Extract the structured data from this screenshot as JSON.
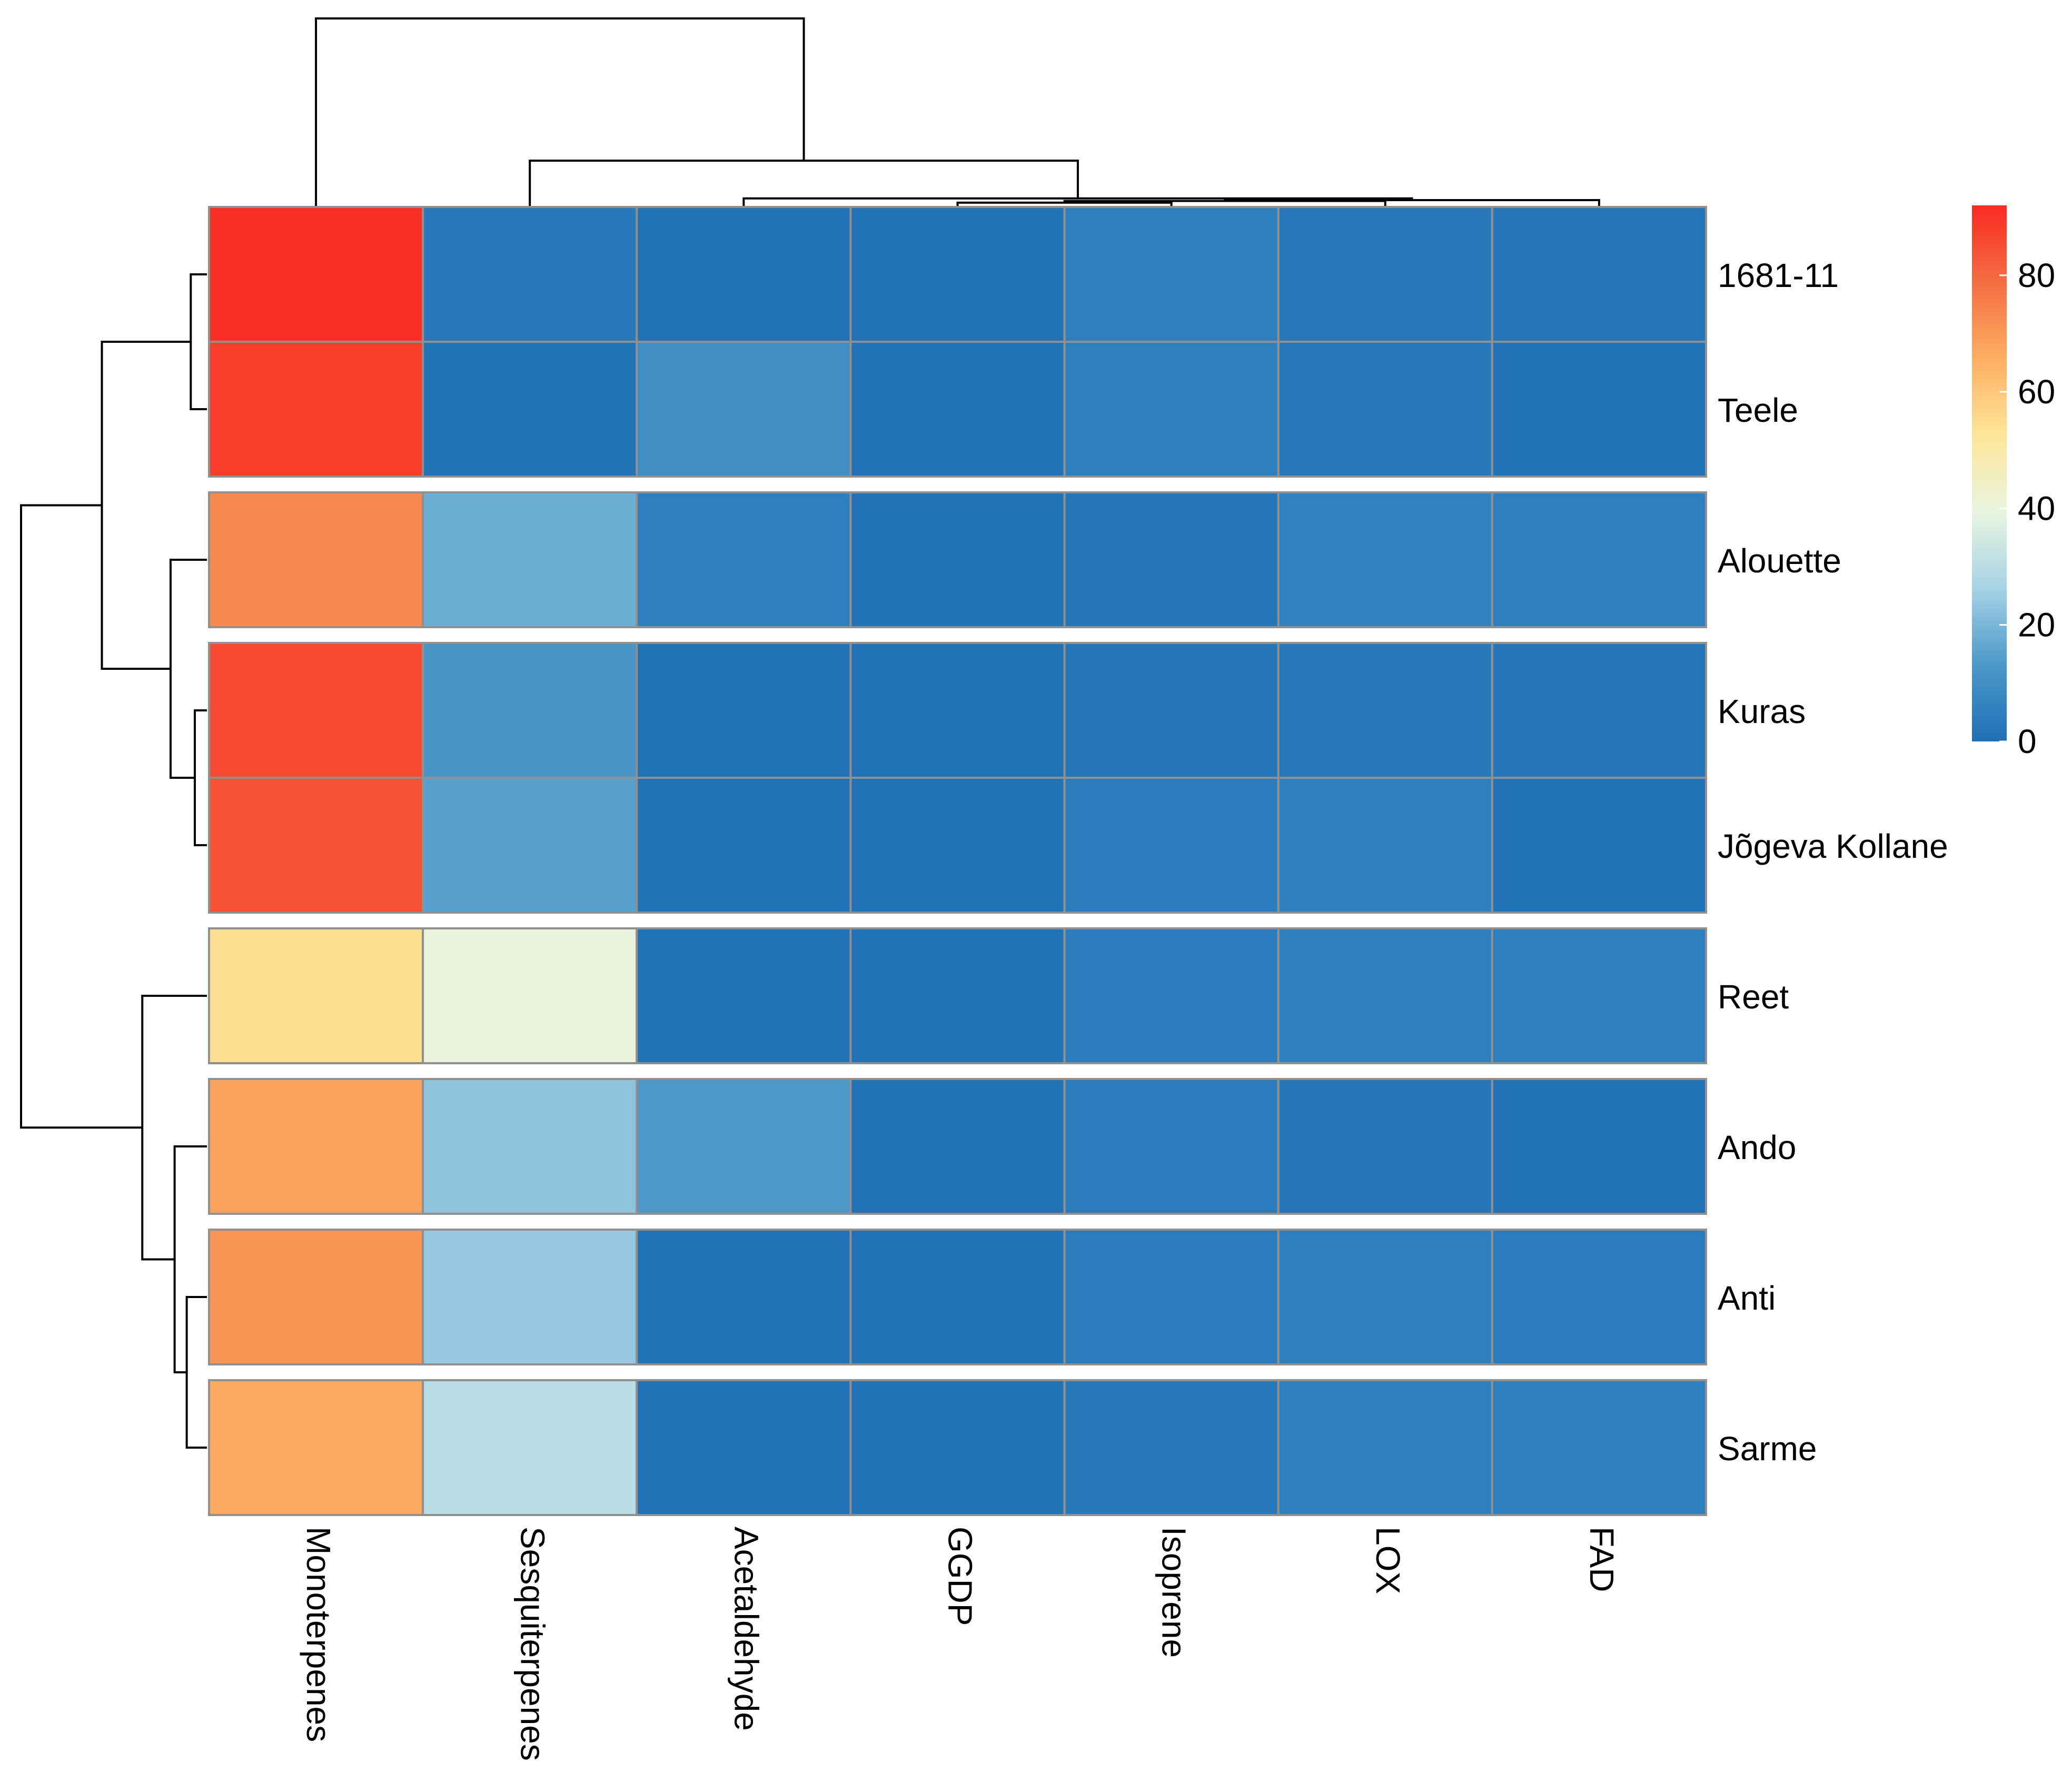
{
  "chart_data": {
    "type": "heatmap",
    "title": "",
    "columns": [
      "Monoterpenes",
      "Sesquiterpenes",
      "Acetaldehyde",
      "GGDP",
      "Isoprene",
      "LOX",
      "FAD"
    ],
    "rows": [
      "1681-11",
      "Teele",
      "Alouette",
      "Kuras",
      "Jõgeva Kollane",
      "Reet",
      "Ando",
      "Anti",
      "Sarme"
    ],
    "row_groups": [
      [
        0,
        1
      ],
      [
        2
      ],
      [
        3,
        4
      ],
      [
        5
      ],
      [
        6
      ],
      [
        7
      ],
      [
        8
      ]
    ],
    "values": [
      [
        91,
        3,
        1,
        1,
        5,
        3,
        2
      ],
      [
        88,
        1,
        10,
        1,
        5,
        3,
        1
      ],
      [
        73,
        18,
        5,
        1,
        2,
        6,
        5
      ],
      [
        86,
        12,
        1,
        1,
        2,
        3,
        2
      ],
      [
        84,
        15,
        1,
        1,
        4,
        5,
        1
      ],
      [
        54,
        40,
        1,
        1,
        4,
        5,
        5
      ],
      [
        68,
        23,
        13,
        1,
        4,
        2,
        1
      ],
      [
        71,
        24,
        1,
        1,
        4,
        5,
        4
      ],
      [
        67,
        30,
        1,
        1,
        3,
        5,
        5
      ]
    ],
    "colorbar": {
      "min": 0,
      "max": 92,
      "ticks": [
        0,
        20,
        40,
        60,
        80
      ],
      "colors": [
        "#1f6fb6",
        "#4b98c9",
        "#a6d3e6",
        "#e9f5e0",
        "#fee699",
        "#fdae61",
        "#f46d43",
        "#fa2a21"
      ]
    },
    "cell_border_color": "#909090",
    "col_dendrogram": {
      "leaf_order": [
        "Monoterpenes",
        "Sesquiterpenes",
        "Acetaldehyde",
        "GGDP",
        "Isoprene",
        "LOX",
        "FAD"
      ],
      "merges": [
        [
          -4,
          -5,
          0.05
        ],
        [
          1,
          -6,
          0.07
        ],
        [
          2,
          -7,
          0.08
        ],
        [
          -3,
          3,
          0.1
        ],
        [
          -2,
          4,
          0.54
        ],
        [
          -1,
          5,
          2.2
        ]
      ]
    },
    "row_dendrogram": {
      "leaf_order": [
        "1681-11",
        "Teele",
        "Alouette",
        "Kuras",
        "Jõgeva Kollane",
        "Reet",
        "Ando",
        "Anti",
        "Sarme"
      ],
      "merges": [
        [
          -1,
          -2,
          0.2
        ],
        [
          -4,
          -5,
          0.15
        ],
        [
          -3,
          2,
          0.45
        ],
        [
          1,
          3,
          1.3
        ],
        [
          -8,
          -9,
          0.25
        ],
        [
          -7,
          5,
          0.4
        ],
        [
          -6,
          6,
          0.8
        ],
        [
          4,
          7,
          2.3
        ]
      ]
    }
  }
}
